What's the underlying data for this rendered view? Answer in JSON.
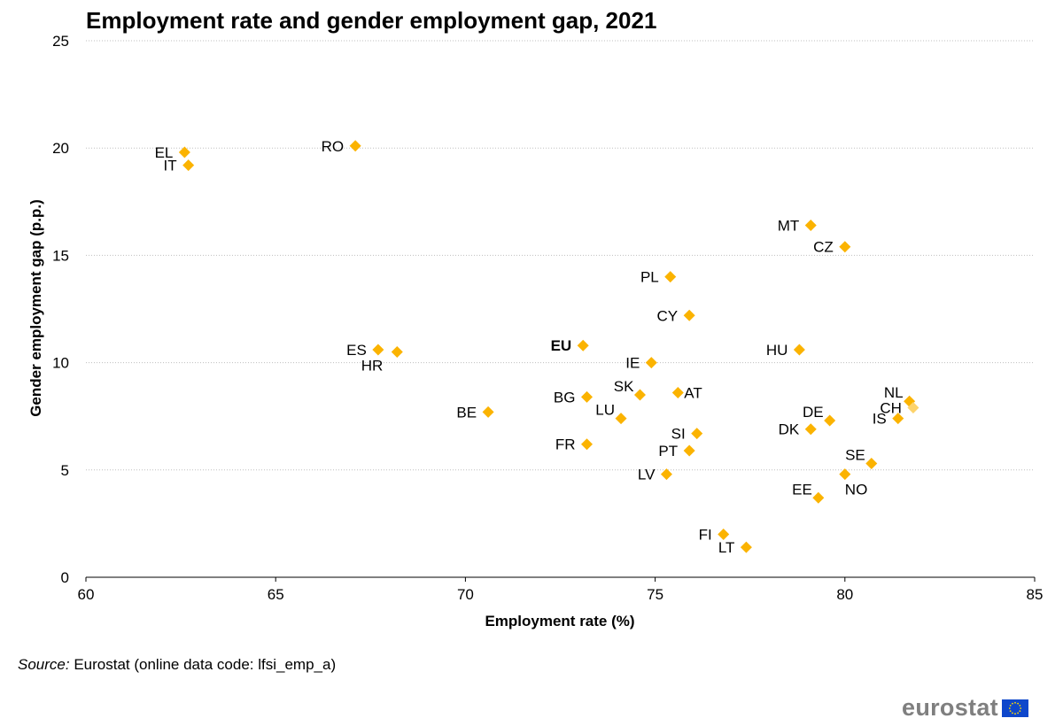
{
  "title": "Employment rate and gender employment gap, 2021",
  "source": {
    "label": "Source:",
    "text": " Eurostat (online data code: lfsi_emp_a)"
  },
  "logo": {
    "text": "eurostat",
    "icon": "eu-flag-icon"
  },
  "colors": {
    "marker": "#FBB300",
    "marker_faded": "#FDD36B",
    "grid": "#BFBFBF",
    "flag_blue": "#0E47CB",
    "flag_star": "#FFDD00"
  },
  "chart_data": {
    "type": "scatter",
    "title": "Employment rate and gender employment gap, 2021",
    "xlabel": "Employment rate (%)",
    "ylabel": "Gender employment gap (p.p.)",
    "xlim": [
      60,
      85
    ],
    "ylim": [
      0,
      25
    ],
    "xticks": [
      60,
      65,
      70,
      75,
      80,
      85
    ],
    "yticks": [
      0,
      5,
      10,
      15,
      20,
      25
    ],
    "grid": "horizontal dotted",
    "legend": "none",
    "points": [
      {
        "label": "EL",
        "x": 62.6,
        "y": 19.8,
        "pos": "left"
      },
      {
        "label": "IT",
        "x": 62.7,
        "y": 19.2,
        "pos": "left"
      },
      {
        "label": "RO",
        "x": 67.1,
        "y": 20.1,
        "pos": "left"
      },
      {
        "label": "MT",
        "x": 79.1,
        "y": 16.4,
        "pos": "left"
      },
      {
        "label": "CZ",
        "x": 80.0,
        "y": 15.4,
        "pos": "left"
      },
      {
        "label": "PL",
        "x": 75.4,
        "y": 14.0,
        "pos": "left"
      },
      {
        "label": "CY",
        "x": 75.9,
        "y": 12.2,
        "pos": "left"
      },
      {
        "label": "EU",
        "x": 73.1,
        "y": 10.8,
        "pos": "left",
        "bold": true
      },
      {
        "label": "ES",
        "x": 67.7,
        "y": 10.6,
        "pos": "left"
      },
      {
        "label": "HR",
        "x": 68.2,
        "y": 10.5,
        "pos": "below-left"
      },
      {
        "label": "HU",
        "x": 78.8,
        "y": 10.6,
        "pos": "left"
      },
      {
        "label": "IE",
        "x": 74.9,
        "y": 10.0,
        "pos": "left"
      },
      {
        "label": "SK",
        "x": 74.6,
        "y": 8.5,
        "pos": "above-left"
      },
      {
        "label": "AT",
        "x": 75.6,
        "y": 8.6,
        "pos": "right"
      },
      {
        "label": "BG",
        "x": 73.2,
        "y": 8.4,
        "pos": "left"
      },
      {
        "label": "LU",
        "x": 74.1,
        "y": 7.4,
        "pos": "above-left"
      },
      {
        "label": "BE",
        "x": 70.6,
        "y": 7.7,
        "pos": "left"
      },
      {
        "label": "NL",
        "x": 81.7,
        "y": 8.2,
        "pos": "above-left"
      },
      {
        "label": "CH",
        "x": 81.8,
        "y": 7.9,
        "pos": "left",
        "faded": true
      },
      {
        "label": "DE",
        "x": 79.6,
        "y": 7.3,
        "pos": "above-left"
      },
      {
        "label": "IS",
        "x": 81.4,
        "y": 7.4,
        "pos": "left"
      },
      {
        "label": "DK",
        "x": 79.1,
        "y": 6.9,
        "pos": "left"
      },
      {
        "label": "SI",
        "x": 76.1,
        "y": 6.7,
        "pos": "left"
      },
      {
        "label": "FR",
        "x": 73.2,
        "y": 6.2,
        "pos": "left"
      },
      {
        "label": "PT",
        "x": 75.9,
        "y": 5.9,
        "pos": "left"
      },
      {
        "label": "SE",
        "x": 80.7,
        "y": 5.3,
        "pos": "above-left"
      },
      {
        "label": "NO",
        "x": 80.0,
        "y": 4.8,
        "pos": "below-right"
      },
      {
        "label": "LV",
        "x": 75.3,
        "y": 4.8,
        "pos": "left"
      },
      {
        "label": "EE",
        "x": 79.3,
        "y": 3.7,
        "pos": "above-left"
      },
      {
        "label": "FI",
        "x": 76.8,
        "y": 2.0,
        "pos": "left"
      },
      {
        "label": "LT",
        "x": 77.4,
        "y": 1.4,
        "pos": "left"
      }
    ]
  }
}
